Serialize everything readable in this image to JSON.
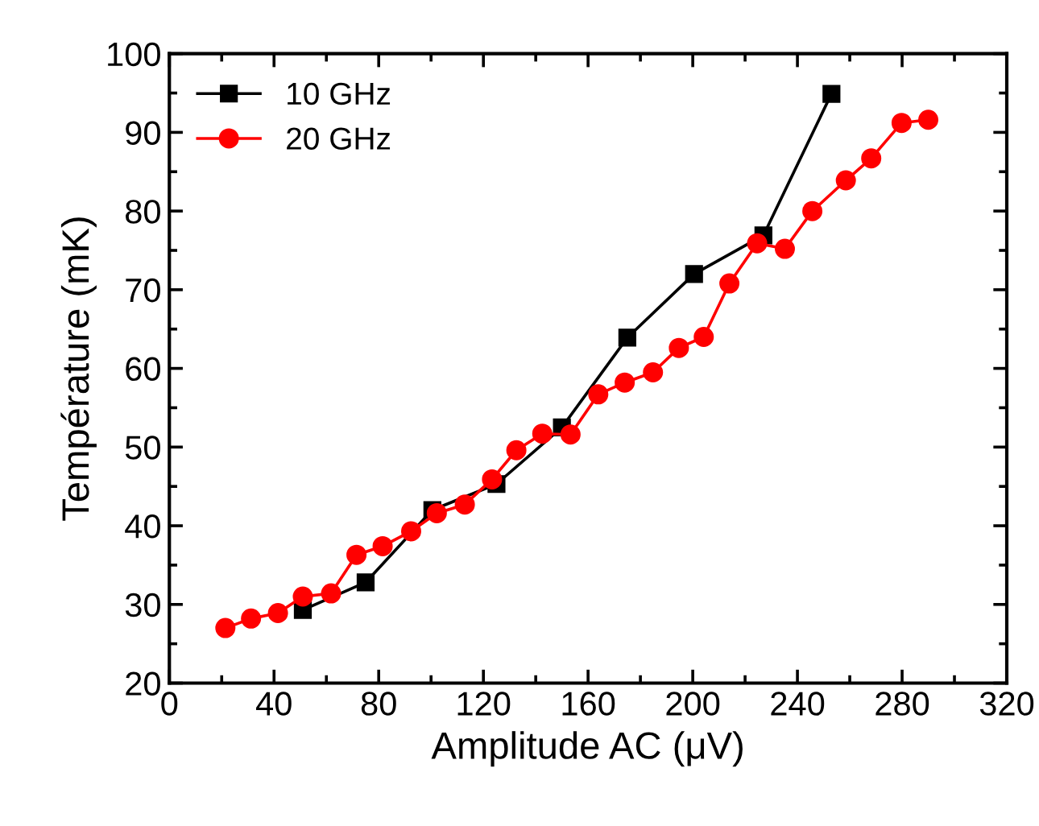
{
  "chart_data": {
    "type": "line",
    "xlabel": "Amplitude AC (μV)",
    "ylabel": "Température (mK)",
    "xlim": [
      0,
      320
    ],
    "xticks": [
      0,
      40,
      80,
      120,
      160,
      200,
      240,
      280,
      320
    ],
    "ylim": [
      20,
      100
    ],
    "yticks": [
      20,
      30,
      40,
      50,
      60,
      70,
      80,
      90,
      100
    ],
    "legend": "top left",
    "grid": false,
    "series": [
      {
        "name": "10 GHz",
        "color": "#000000",
        "marker": "square",
        "x": [
          51,
          75,
          100.5,
          125,
          150,
          175,
          200.5,
          227,
          253
        ],
        "values": [
          29.3,
          32.8,
          42.0,
          45.3,
          52.5,
          63.9,
          72.0,
          76.9,
          94.9
        ]
      },
      {
        "name": "20 GHz",
        "color": "#ff0000",
        "marker": "circle",
        "x": [
          21.4,
          31.2,
          41.5,
          51,
          61.8,
          71.5,
          81.5,
          92.4,
          102.2,
          112.9,
          123.3,
          132.6,
          142.5,
          153.3,
          163.9,
          174,
          184.8,
          194.7,
          204.2,
          214,
          224.6,
          235.2,
          245.7,
          258.5,
          268.2,
          279.8,
          290
        ],
        "values": [
          27.0,
          28.2,
          28.9,
          31.0,
          31.4,
          36.3,
          37.4,
          39.3,
          41.6,
          42.7,
          45.9,
          49.6,
          51.7,
          51.6,
          56.7,
          58.2,
          59.5,
          62.6,
          64.0,
          70.8,
          75.9,
          75.2,
          80.0,
          83.9,
          86.7,
          91.2,
          91.6
        ]
      }
    ]
  }
}
